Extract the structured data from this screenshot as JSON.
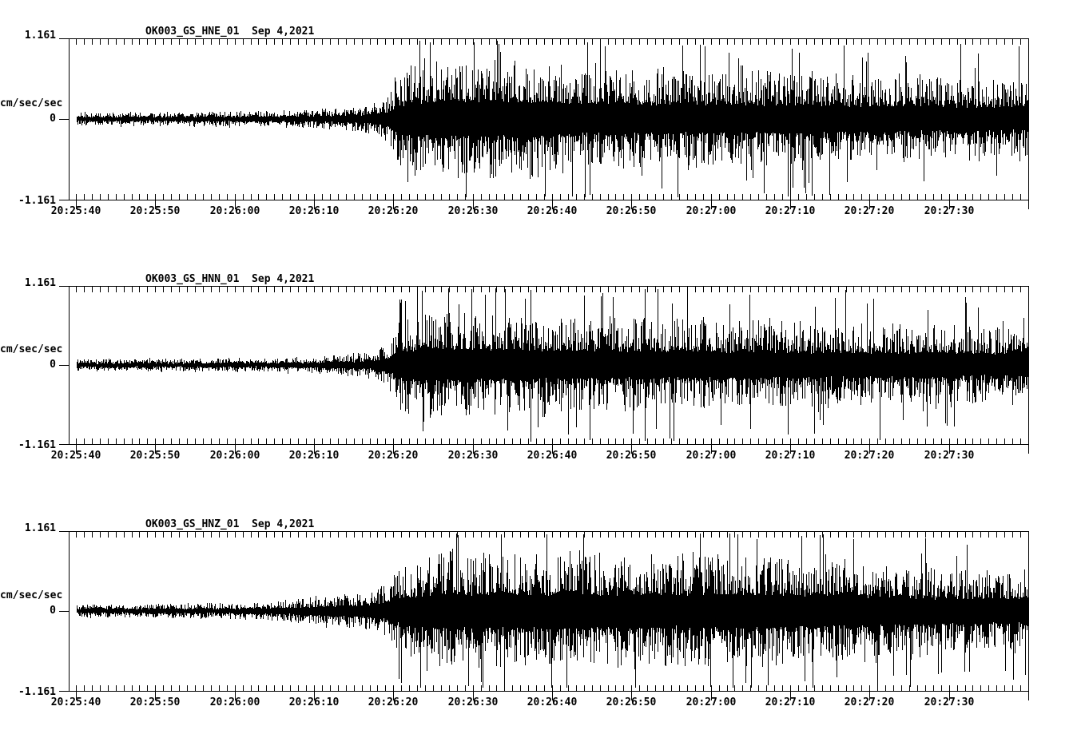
{
  "colors": {
    "background": "#ffffff",
    "ink": "#000000"
  },
  "chart_data": {
    "type": "line",
    "variant": "seismogram",
    "grid": false,
    "legend": "none",
    "date": "Sep 4,2021",
    "ylabel": "cm/sec/sec",
    "ylim": [
      -1.161,
      1.161
    ],
    "y_tick_labels": [
      "1.161",
      "0",
      "-1.161"
    ],
    "x_start_time": "20:25:40",
    "x_end_time": "20:27:40",
    "x_duration_seconds": 120,
    "x_minor_tick_interval_seconds": 1,
    "x_major_tick_interval_seconds": 10,
    "x_major_tick_labels": [
      "20:25:40",
      "20:25:50",
      "20:26:00",
      "20:26:10",
      "20:26:20",
      "20:26:30",
      "20:26:40",
      "20:26:50",
      "20:27:00",
      "20:27:10",
      "20:27:20",
      "20:27:30"
    ],
    "envelope_format": "[seconds_from_20:25:40, peak_amplitude_fraction_of_1.161]",
    "panels": [
      {
        "channel_id": "OK003_GS_HNE_01",
        "station": "OK003",
        "network": "GS",
        "channel": "HNE",
        "location": "01",
        "title": "OK003_GS_HNE_01  Sep 4,2021",
        "envelope": [
          [
            0,
            0.08
          ],
          [
            12,
            0.085
          ],
          [
            22,
            0.095
          ],
          [
            29,
            0.11
          ],
          [
            33,
            0.13
          ],
          [
            36,
            0.16
          ],
          [
            38,
            0.21
          ],
          [
            39.5,
            0.33
          ],
          [
            40.5,
            0.58
          ],
          [
            43,
            0.68
          ],
          [
            46,
            0.72
          ],
          [
            50,
            0.75
          ],
          [
            54,
            0.68
          ],
          [
            57,
            0.72
          ],
          [
            60,
            0.65
          ],
          [
            64,
            0.62
          ],
          [
            68,
            0.65
          ],
          [
            72,
            0.6
          ],
          [
            76,
            0.62
          ],
          [
            80,
            0.58
          ],
          [
            84,
            0.62
          ],
          [
            88,
            0.57
          ],
          [
            92,
            0.6
          ],
          [
            96,
            0.55
          ],
          [
            100,
            0.52
          ],
          [
            104,
            0.54
          ],
          [
            108,
            0.5
          ],
          [
            112,
            0.5
          ],
          [
            116,
            0.48
          ],
          [
            120,
            0.5
          ]
        ]
      },
      {
        "channel_id": "OK003_GS_HNN_01",
        "station": "OK003",
        "network": "GS",
        "channel": "HNN",
        "location": "01",
        "title": "OK003_GS_HNN_01  Sep 4,2021",
        "envelope": [
          [
            0,
            0.075
          ],
          [
            12,
            0.08
          ],
          [
            22,
            0.09
          ],
          [
            29,
            0.1
          ],
          [
            33,
            0.12
          ],
          [
            36,
            0.15
          ],
          [
            38,
            0.19
          ],
          [
            39.5,
            0.3
          ],
          [
            40.5,
            0.56
          ],
          [
            43,
            0.65
          ],
          [
            46,
            0.68
          ],
          [
            50,
            0.63
          ],
          [
            54,
            0.65
          ],
          [
            58,
            0.6
          ],
          [
            62,
            0.62
          ],
          [
            66,
            0.58
          ],
          [
            70,
            0.6
          ],
          [
            74,
            0.56
          ],
          [
            78,
            0.58
          ],
          [
            82,
            0.55
          ],
          [
            86,
            0.57
          ],
          [
            90,
            0.53
          ],
          [
            94,
            0.55
          ],
          [
            98,
            0.51
          ],
          [
            102,
            0.53
          ],
          [
            106,
            0.49
          ],
          [
            110,
            0.51
          ],
          [
            114,
            0.47
          ],
          [
            120,
            0.48
          ]
        ]
      },
      {
        "channel_id": "OK003_GS_HNZ_01",
        "station": "OK003",
        "network": "GS",
        "channel": "HNZ",
        "location": "01",
        "title": "OK003_GS_HNZ_01  Sep 4,2021",
        "envelope": [
          [
            0,
            0.08
          ],
          [
            10,
            0.085
          ],
          [
            18,
            0.095
          ],
          [
            24,
            0.12
          ],
          [
            28,
            0.15
          ],
          [
            31,
            0.19
          ],
          [
            33,
            0.22
          ],
          [
            35,
            0.21
          ],
          [
            37,
            0.25
          ],
          [
            39,
            0.35
          ],
          [
            41,
            0.52
          ],
          [
            43,
            0.64
          ],
          [
            45,
            0.72
          ],
          [
            47,
            0.75
          ],
          [
            50,
            0.68
          ],
          [
            54,
            0.72
          ],
          [
            58,
            0.68
          ],
          [
            62,
            0.72
          ],
          [
            66,
            0.68
          ],
          [
            70,
            0.72
          ],
          [
            74,
            0.68
          ],
          [
            78,
            0.72
          ],
          [
            82,
            0.7
          ],
          [
            86,
            0.72
          ],
          [
            90,
            0.66
          ],
          [
            94,
            0.68
          ],
          [
            98,
            0.62
          ],
          [
            102,
            0.6
          ],
          [
            106,
            0.58
          ],
          [
            110,
            0.54
          ],
          [
            114,
            0.5
          ],
          [
            120,
            0.52
          ]
        ]
      }
    ]
  }
}
